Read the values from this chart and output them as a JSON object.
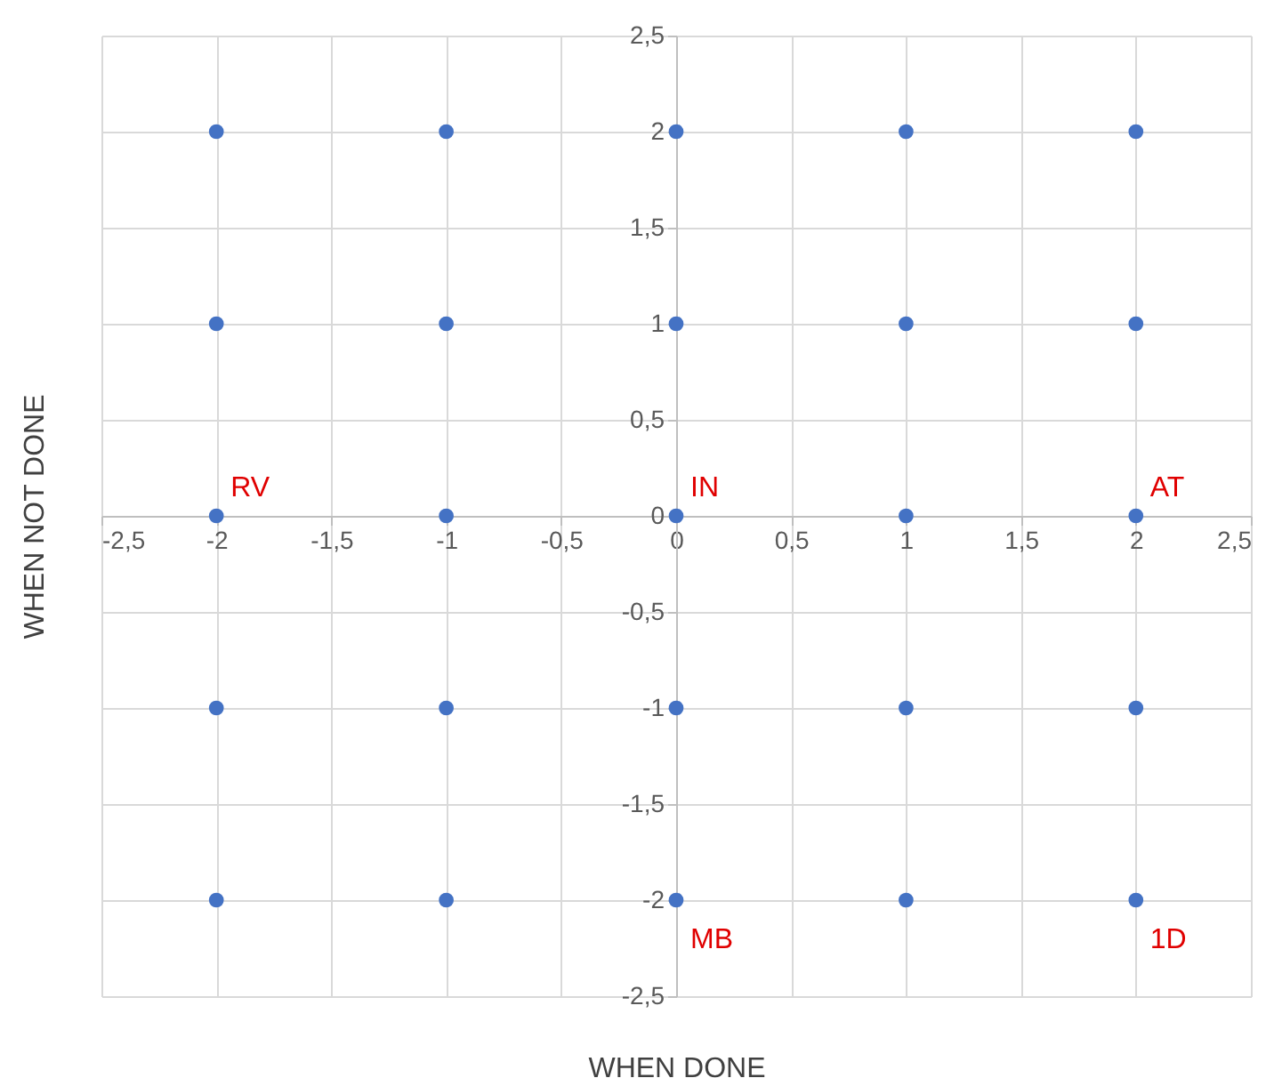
{
  "chart_data": {
    "type": "scatter",
    "xlabel": "WHEN DONE",
    "ylabel": "WHEN NOT DONE",
    "x": [
      -2,
      -1,
      0,
      1,
      2,
      -2,
      -1,
      0,
      1,
      2,
      -2,
      -1,
      0,
      1,
      2,
      -2,
      -1,
      0,
      1,
      2,
      -2,
      -1,
      0,
      1,
      2
    ],
    "series": [
      {
        "color": "#4472c4",
        "values": [
          2,
          2,
          2,
          2,
          2,
          1,
          1,
          1,
          1,
          1,
          0,
          0,
          0,
          0,
          0,
          -1,
          -1,
          -1,
          -1,
          -1,
          -2,
          -2,
          -2,
          -2,
          -2
        ]
      }
    ],
    "xlim": [
      -2.5,
      2.5
    ],
    "ylim": [
      -2.5,
      2.5
    ],
    "xticks": [
      {
        "value": -2.5,
        "label": "-2,5"
      },
      -2,
      {
        "value": -1.5,
        "label": "-1,5"
      },
      -1,
      {
        "value": -0.5,
        "label": "-0,5"
      },
      0,
      {
        "value": 0.5,
        "label": "0,5"
      },
      1,
      {
        "value": 1.5,
        "label": "1,5"
      },
      2,
      {
        "value": 2.5,
        "label": "2,5"
      }
    ],
    "yticks": [
      {
        "value": -2.5,
        "label": "-2,5"
      },
      -2,
      {
        "value": -1.5,
        "label": "-1,5"
      },
      -1,
      {
        "value": -0.5,
        "label": "-0,5"
      },
      0,
      {
        "value": 0.5,
        "label": "0,5"
      },
      1,
      {
        "value": 1.5,
        "label": "1,5"
      },
      2,
      {
        "value": 2.5,
        "label": "2,5"
      }
    ],
    "grid": true,
    "marker": "circle",
    "annotations": [
      {
        "text": "RV",
        "x": -2,
        "y": 0
      },
      {
        "text": "IN",
        "x": 0,
        "y": 0
      },
      {
        "text": "AT",
        "x": 2,
        "y": 0
      },
      {
        "text": "MB",
        "x": 0,
        "y": -2
      },
      {
        "text": "1D",
        "x": 2,
        "y": -2
      }
    ]
  }
}
